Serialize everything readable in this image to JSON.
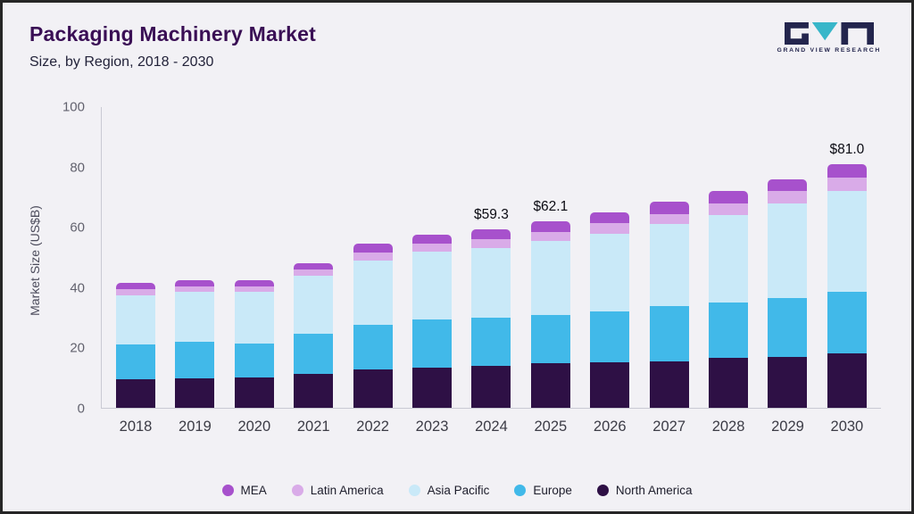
{
  "header": {
    "title": "Packaging Machinery Market",
    "subtitle": "Size, by Region, 2018 - 2030",
    "logo_text": "GRAND VIEW RESEARCH"
  },
  "chart_data": {
    "type": "bar",
    "stacked": true,
    "title": "Packaging Machinery Market Size, by Region, 2018 - 2030",
    "xlabel": "",
    "ylabel": "Market Size (US$B)",
    "ylim": [
      0,
      100
    ],
    "yticks": [
      0,
      20,
      40,
      60,
      80,
      100
    ],
    "grid": false,
    "legend_position": "bottom",
    "categories": [
      "2018",
      "2019",
      "2020",
      "2021",
      "2022",
      "2023",
      "2024",
      "2025",
      "2026",
      "2027",
      "2028",
      "2029",
      "2030"
    ],
    "series": [
      {
        "name": "North America",
        "color": "#2e1045",
        "values": [
          9.6,
          9.8,
          10.0,
          11.3,
          12.8,
          13.5,
          14.0,
          14.7,
          15.0,
          15.5,
          16.5,
          17.0,
          18.0
        ]
      },
      {
        "name": "Europe",
        "color": "#41b9e9",
        "values": [
          11.6,
          12.2,
          11.5,
          13.2,
          14.7,
          16.0,
          16.0,
          16.3,
          17.0,
          18.3,
          18.5,
          19.5,
          20.5
        ]
      },
      {
        "name": "Asia Pacific",
        "color": "#c9e9f8",
        "values": [
          16.3,
          16.5,
          17.0,
          19.5,
          21.5,
          22.5,
          23.0,
          24.5,
          26.0,
          27.2,
          29.0,
          31.5,
          33.5
        ]
      },
      {
        "name": "Latin America",
        "color": "#d9abe8",
        "values": [
          2.0,
          2.0,
          1.8,
          2.0,
          2.5,
          2.5,
          3.0,
          3.0,
          3.5,
          3.5,
          4.0,
          4.0,
          4.5
        ]
      },
      {
        "name": "MEA",
        "color": "#a751cc",
        "values": [
          2.0,
          2.0,
          2.2,
          2.0,
          3.0,
          3.0,
          3.3,
          3.6,
          3.5,
          4.0,
          4.0,
          4.0,
          4.5
        ]
      }
    ],
    "totals_labeled": [
      {
        "category": "2024",
        "label": "$59.3"
      },
      {
        "category": "2025",
        "label": "$62.1"
      },
      {
        "category": "2030",
        "label": "$81.0"
      }
    ]
  }
}
